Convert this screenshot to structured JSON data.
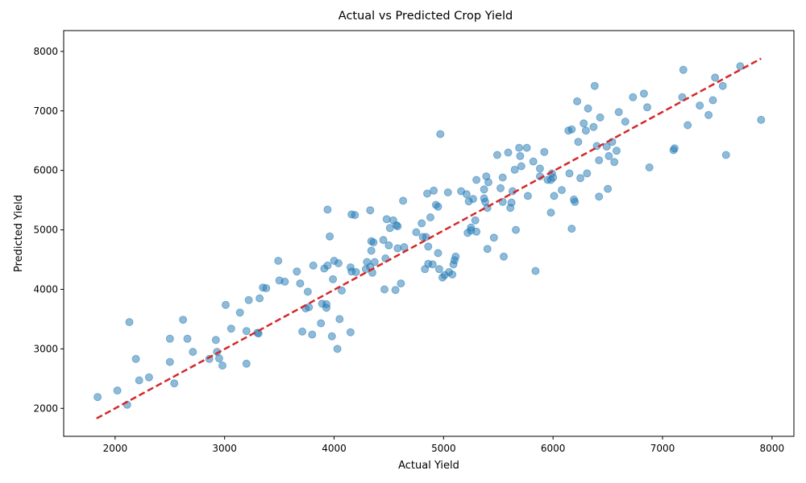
{
  "chart_data": {
    "type": "scatter",
    "title": "Actual vs Predicted Crop Yield",
    "xlabel": "Actual Yield",
    "ylabel": "Predicted Yield",
    "xlim": [
      1530,
      8200
    ],
    "ylim": [
      1530,
      8350
    ],
    "xticks": [
      2000,
      3000,
      4000,
      5000,
      6000,
      7000,
      8000
    ],
    "yticks": [
      2000,
      3000,
      4000,
      5000,
      6000,
      7000,
      8000
    ],
    "point_color": "#1f77b4",
    "point_alpha": 0.5,
    "fit_line": {
      "color": "#d62728",
      "style": "dashed",
      "x": [
        1830,
        7900
      ],
      "y": [
        1830,
        7880
      ]
    },
    "points": [
      [
        1840,
        2190
      ],
      [
        2020,
        2300
      ],
      [
        2110,
        2060
      ],
      [
        2130,
        3450
      ],
      [
        2190,
        2830
      ],
      [
        2220,
        2470
      ],
      [
        2310,
        2520
      ],
      [
        2500,
        3170
      ],
      [
        2500,
        2780
      ],
      [
        2540,
        2420
      ],
      [
        2620,
        3490
      ],
      [
        2660,
        3170
      ],
      [
        2710,
        2950
      ],
      [
        2860,
        2830
      ],
      [
        2920,
        3150
      ],
      [
        2930,
        2950
      ],
      [
        2950,
        2840
      ],
      [
        2980,
        2720
      ],
      [
        3010,
        3740
      ],
      [
        3060,
        3340
      ],
      [
        3140,
        3610
      ],
      [
        3200,
        3300
      ],
      [
        3200,
        2750
      ],
      [
        3220,
        3820
      ],
      [
        3300,
        3270
      ],
      [
        3310,
        3260
      ],
      [
        3320,
        3850
      ],
      [
        3350,
        4030
      ],
      [
        3380,
        4020
      ],
      [
        3490,
        4480
      ],
      [
        3500,
        4150
      ],
      [
        3550,
        4130
      ],
      [
        3660,
        4300
      ],
      [
        3690,
        4100
      ],
      [
        3710,
        3290
      ],
      [
        3740,
        3680
      ],
      [
        3760,
        3960
      ],
      [
        3770,
        3700
      ],
      [
        3800,
        3240
      ],
      [
        3810,
        4400
      ],
      [
        3880,
        3430
      ],
      [
        3890,
        3760
      ],
      [
        3910,
        4350
      ],
      [
        3930,
        3750
      ],
      [
        3930,
        3690
      ],
      [
        3940,
        4400
      ],
      [
        3940,
        5340
      ],
      [
        3960,
        4890
      ],
      [
        3980,
        3210
      ],
      [
        3990,
        4170
      ],
      [
        4000,
        4480
      ],
      [
        4030,
        3000
      ],
      [
        4040,
        4440
      ],
      [
        4050,
        3500
      ],
      [
        4070,
        3980
      ],
      [
        4150,
        4370
      ],
      [
        4150,
        3280
      ],
      [
        4160,
        4300
      ],
      [
        4160,
        5260
      ],
      [
        4190,
        5250
      ],
      [
        4200,
        4290
      ],
      [
        4290,
        4340
      ],
      [
        4300,
        4460
      ],
      [
        4330,
        5330
      ],
      [
        4330,
        4380
      ],
      [
        4340,
        4810
      ],
      [
        4340,
        4650
      ],
      [
        4350,
        4280
      ],
      [
        4360,
        4790
      ],
      [
        4370,
        4460
      ],
      [
        4450,
        4830
      ],
      [
        4460,
        4000
      ],
      [
        4470,
        4520
      ],
      [
        4480,
        5180
      ],
      [
        4500,
        4740
      ],
      [
        4510,
        5030
      ],
      [
        4540,
        5160
      ],
      [
        4560,
        3990
      ],
      [
        4570,
        5080
      ],
      [
        4580,
        5060
      ],
      [
        4580,
        4690
      ],
      [
        4610,
        4100
      ],
      [
        4630,
        5490
      ],
      [
        4640,
        4710
      ],
      [
        4750,
        4960
      ],
      [
        4800,
        5110
      ],
      [
        4810,
        4880
      ],
      [
        4830,
        4340
      ],
      [
        4840,
        4880
      ],
      [
        4850,
        5610
      ],
      [
        4860,
        4430
      ],
      [
        4860,
        4720
      ],
      [
        4880,
        5210
      ],
      [
        4900,
        4420
      ],
      [
        4910,
        5660
      ],
      [
        4930,
        5420
      ],
      [
        4950,
        4610
      ],
      [
        4950,
        5390
      ],
      [
        4960,
        4340
      ],
      [
        4970,
        6610
      ],
      [
        4990,
        4200
      ],
      [
        5010,
        4240
      ],
      [
        5040,
        5630
      ],
      [
        5050,
        4290
      ],
      [
        5080,
        4250
      ],
      [
        5090,
        4420
      ],
      [
        5100,
        4490
      ],
      [
        5110,
        4550
      ],
      [
        5160,
        5650
      ],
      [
        5210,
        5600
      ],
      [
        5220,
        4950
      ],
      [
        5230,
        5480
      ],
      [
        5250,
        5040
      ],
      [
        5250,
        4990
      ],
      [
        5270,
        5520
      ],
      [
        5290,
        5160
      ],
      [
        5300,
        5840
      ],
      [
        5300,
        4970
      ],
      [
        5370,
        5680
      ],
      [
        5370,
        5530
      ],
      [
        5380,
        5470
      ],
      [
        5390,
        5900
      ],
      [
        5400,
        5370
      ],
      [
        5400,
        4680
      ],
      [
        5410,
        5800
      ],
      [
        5460,
        4870
      ],
      [
        5490,
        6260
      ],
      [
        5520,
        5700
      ],
      [
        5540,
        5880
      ],
      [
        5540,
        5470
      ],
      [
        5550,
        4550
      ],
      [
        5590,
        6300
      ],
      [
        5610,
        5370
      ],
      [
        5620,
        5460
      ],
      [
        5630,
        5650
      ],
      [
        5650,
        6010
      ],
      [
        5660,
        5000
      ],
      [
        5690,
        6380
      ],
      [
        5700,
        6240
      ],
      [
        5710,
        6070
      ],
      [
        5760,
        6380
      ],
      [
        5770,
        5570
      ],
      [
        5820,
        6150
      ],
      [
        5840,
        4310
      ],
      [
        5880,
        6030
      ],
      [
        5880,
        5900
      ],
      [
        5920,
        6310
      ],
      [
        5950,
        5840
      ],
      [
        5980,
        5290
      ],
      [
        5980,
        5840
      ],
      [
        5990,
        5950
      ],
      [
        6000,
        5880
      ],
      [
        6010,
        5570
      ],
      [
        6080,
        5670
      ],
      [
        6140,
        6670
      ],
      [
        6150,
        5950
      ],
      [
        6170,
        6690
      ],
      [
        6170,
        5020
      ],
      [
        6190,
        5510
      ],
      [
        6200,
        5470
      ],
      [
        6220,
        7160
      ],
      [
        6230,
        6480
      ],
      [
        6250,
        5870
      ],
      [
        6280,
        6790
      ],
      [
        6300,
        6670
      ],
      [
        6310,
        5950
      ],
      [
        6320,
        7040
      ],
      [
        6370,
        6730
      ],
      [
        6380,
        7420
      ],
      [
        6400,
        6410
      ],
      [
        6420,
        6170
      ],
      [
        6420,
        5560
      ],
      [
        6430,
        6890
      ],
      [
        6490,
        6400
      ],
      [
        6500,
        5690
      ],
      [
        6510,
        6240
      ],
      [
        6540,
        6480
      ],
      [
        6560,
        6140
      ],
      [
        6580,
        6330
      ],
      [
        6600,
        6980
      ],
      [
        6660,
        6820
      ],
      [
        6730,
        7230
      ],
      [
        6830,
        7290
      ],
      [
        6860,
        7060
      ],
      [
        6880,
        6050
      ],
      [
        7100,
        6340
      ],
      [
        7110,
        6370
      ],
      [
        7180,
        7230
      ],
      [
        7190,
        7690
      ],
      [
        7230,
        6760
      ],
      [
        7340,
        7090
      ],
      [
        7420,
        6930
      ],
      [
        7460,
        7180
      ],
      [
        7480,
        7560
      ],
      [
        7550,
        7420
      ],
      [
        7580,
        6260
      ],
      [
        7710,
        7750
      ],
      [
        7900,
        6850
      ]
    ]
  }
}
